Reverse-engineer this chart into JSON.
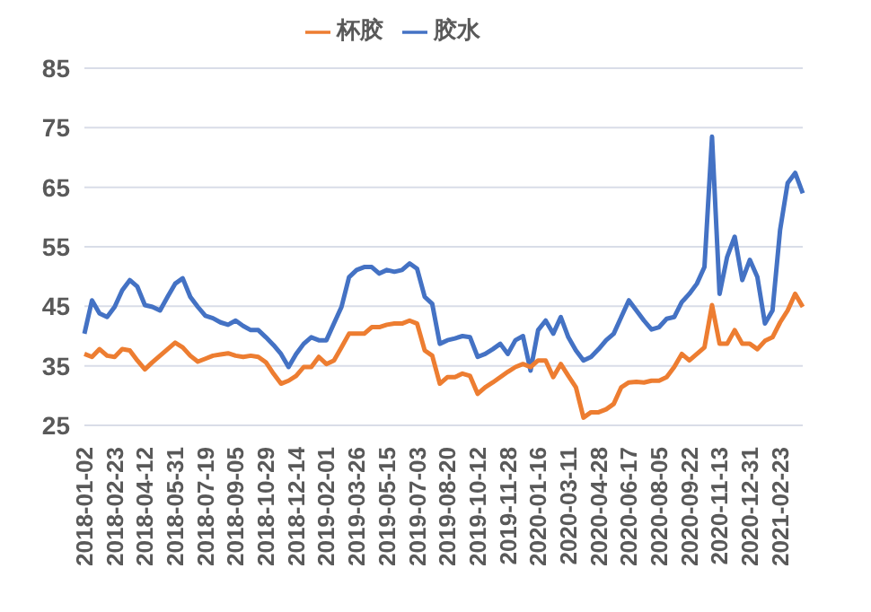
{
  "chart_data": {
    "type": "line",
    "legend": "top",
    "grid": "y",
    "ylim": [
      25,
      85
    ],
    "yticks": [
      25,
      35,
      45,
      55,
      65,
      75,
      85
    ],
    "categories": [
      "2018-01-02",
      null,
      null,
      null,
      "2018-02-23",
      null,
      null,
      null,
      "2018-04-12",
      null,
      null,
      null,
      "2018-05-31",
      null,
      null,
      null,
      "2018-07-19",
      null,
      null,
      null,
      "2018-09-05",
      null,
      null,
      null,
      "2018-10-29",
      null,
      null,
      null,
      "2018-12-14",
      null,
      null,
      null,
      "2019-02-01",
      null,
      null,
      null,
      "2019-03-26",
      null,
      null,
      null,
      "2019-05-15",
      null,
      null,
      null,
      "2019-07-03",
      null,
      null,
      null,
      "2019-08-20",
      null,
      null,
      null,
      "2019-10-12",
      null,
      null,
      null,
      "2019-11-28",
      null,
      null,
      null,
      "2020-01-16",
      null,
      null,
      null,
      "2020-03-11",
      null,
      null,
      null,
      "2020-04-28",
      null,
      null,
      null,
      "2020-06-17",
      null,
      null,
      null,
      "2020-08-05",
      null,
      null,
      null,
      "2020-09-22",
      null,
      null,
      null,
      "2020-11-13",
      null,
      null,
      null,
      "2020-12-31",
      null,
      null,
      null,
      "2021-02-23",
      null,
      null,
      null
    ],
    "series": [
      {
        "name": "胶水",
        "color": "#4472c4",
        "values": [
          40.4,
          46,
          43.8,
          43.2,
          44.9,
          47.7,
          49.4,
          48.3,
          45.2,
          44.9,
          44.3,
          46.6,
          48.8,
          49.7,
          46.6,
          44.9,
          43.4,
          43,
          42.3,
          41.9,
          42.6,
          41.7,
          41,
          41,
          39.8,
          38.5,
          37,
          34.8,
          37,
          38.7,
          39.8,
          39.3,
          39.3,
          42.1,
          44.9,
          49.9,
          51.1,
          51.6,
          51.6,
          50.5,
          51.1,
          50.8,
          51.1,
          52.2,
          51.3,
          46.6,
          45.4,
          38.7,
          39.3,
          39.6,
          40,
          39.8,
          36.5,
          37,
          37.8,
          38.7,
          37,
          39.3,
          40,
          34.2,
          41,
          42.6,
          40.4,
          43.2,
          39.8,
          37.6,
          35.9,
          36.5,
          37.8,
          39.3,
          40.4,
          43.2,
          46,
          44.3,
          42.6,
          41.1,
          41.5,
          42.9,
          43.2,
          45.7,
          47.1,
          48.8,
          51.6,
          73.5,
          47.1,
          53.3,
          56.7,
          49.4,
          52.8,
          49.9,
          42.1,
          44.3,
          57.8,
          65.7,
          67.4,
          64
        ]
      },
      {
        "name": "杯胶",
        "color": "#ed7d31",
        "values": [
          37,
          36.5,
          37.8,
          36.7,
          36.5,
          37.8,
          37.6,
          35.9,
          34.4,
          35.6,
          36.7,
          37.8,
          38.9,
          38.1,
          36.7,
          35.7,
          36.2,
          36.7,
          36.9,
          37.1,
          36.7,
          36.5,
          36.7,
          36.5,
          35.6,
          33.7,
          32,
          32.5,
          33.3,
          34.8,
          34.8,
          36.5,
          35.3,
          35.9,
          38.1,
          40.4,
          40.4,
          40.4,
          41.5,
          41.5,
          41.9,
          42.1,
          42.1,
          42.6,
          42.1,
          37.6,
          36.7,
          32,
          33.1,
          33.1,
          33.7,
          33.3,
          30.3,
          31.4,
          32.2,
          33.1,
          34,
          34.8,
          35.3,
          34.8,
          35.9,
          35.9,
          33.1,
          35.3,
          33.3,
          31.4,
          26.3,
          27.2,
          27.2,
          27.7,
          28.6,
          31.4,
          32.2,
          32.3,
          32.2,
          32.5,
          32.5,
          33.1,
          34.8,
          37,
          35.9,
          37,
          38.1,
          45.2,
          38.7,
          38.7,
          41,
          38.7,
          38.7,
          37.8,
          39.2,
          39.8,
          42.3,
          44.3,
          47.1,
          44.9
        ]
      }
    ]
  }
}
